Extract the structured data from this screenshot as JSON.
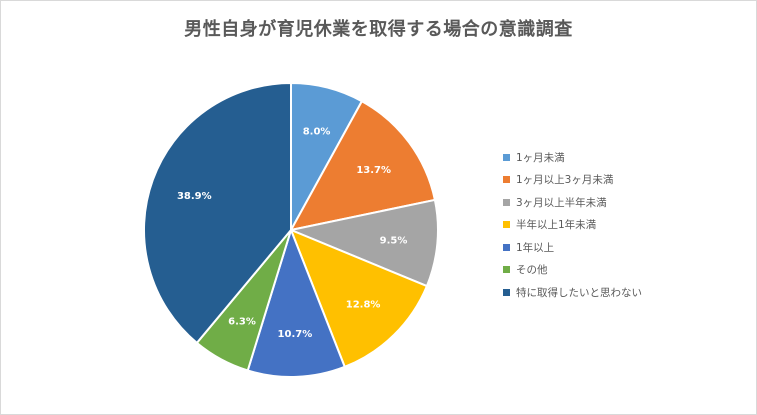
{
  "chart_data": {
    "type": "pie",
    "title": "男性自身が育児休業を取得する場合の意識調査",
    "categories": [
      "1ヶ月未満",
      "1ヶ月以上3ヶ月未満",
      "3ヶ月以上半年未満",
      "半年以上1年未満",
      "1年以上",
      "その他",
      "特に取得したいと思わない"
    ],
    "values": [
      8.0,
      13.7,
      9.5,
      12.8,
      10.7,
      6.3,
      38.9
    ],
    "value_labels": [
      "8.0%",
      "13.7%",
      "9.5%",
      "12.8%",
      "10.7%",
      "6.3%",
      "38.9%"
    ],
    "colors": [
      "#5b9bd5",
      "#ed7d31",
      "#a5a5a5",
      "#ffc000",
      "#4472c4",
      "#70ad47",
      "#255e91"
    ],
    "unit": "%",
    "legend_position": "right"
  }
}
